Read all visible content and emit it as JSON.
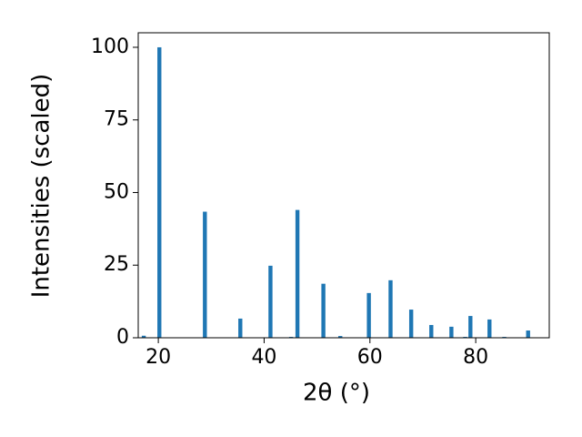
{
  "chart_data": {
    "type": "bar",
    "x_label": "2θ (°)",
    "y_label": "Intensities (scaled)",
    "x": [
      17.25,
      20.2,
      28.8,
      35.5,
      41.2,
      45.1,
      46.3,
      51.2,
      54.4,
      59.8,
      63.9,
      67.8,
      71.6,
      75.4,
      78.0,
      79.0,
      82.6,
      85.4,
      89.9
    ],
    "values": [
      0.7,
      100,
      43.4,
      6.6,
      24.8,
      0.3,
      44,
      18.6,
      0.6,
      15.4,
      19.8,
      9.7,
      4.4,
      3.8,
      0.3,
      7.5,
      6.3,
      0.3,
      2.5
    ],
    "color": "#1f77b4",
    "xlim": [
      16.2,
      93.9
    ],
    "xticks": [
      20,
      40,
      60,
      80
    ],
    "ylim": [
      0,
      105
    ],
    "yticks": [
      0,
      25,
      50,
      75,
      100
    ],
    "grid": false
  }
}
